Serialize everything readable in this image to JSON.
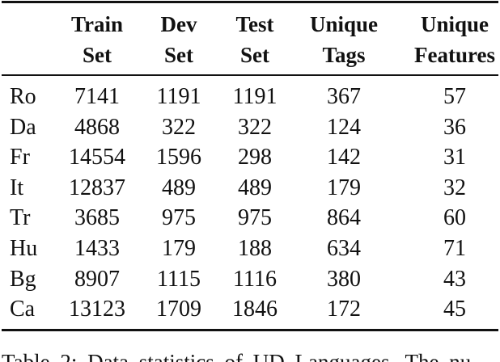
{
  "table": {
    "header": [
      [
        "Train",
        "Set"
      ],
      [
        "Dev",
        "Set"
      ],
      [
        "Test",
        "Set"
      ],
      [
        "Unique",
        "Tags"
      ],
      [
        "Unique",
        "Features"
      ]
    ],
    "rows": [
      [
        "Ro",
        7141,
        1191,
        1191,
        367,
        57
      ],
      [
        "Da",
        4868,
        322,
        322,
        124,
        36
      ],
      [
        "Fr",
        14554,
        1596,
        298,
        142,
        31
      ],
      [
        "It",
        12837,
        489,
        489,
        179,
        32
      ],
      [
        "Tr",
        3685,
        975,
        975,
        864,
        60
      ],
      [
        "Hu",
        1433,
        179,
        188,
        634,
        71
      ],
      [
        "Bg",
        8907,
        1115,
        1116,
        380,
        43
      ],
      [
        "Ca",
        13123,
        1709,
        1846,
        172,
        45
      ]
    ]
  },
  "caption": "Table 2: Data statistics of UD Languages. The nu"
}
